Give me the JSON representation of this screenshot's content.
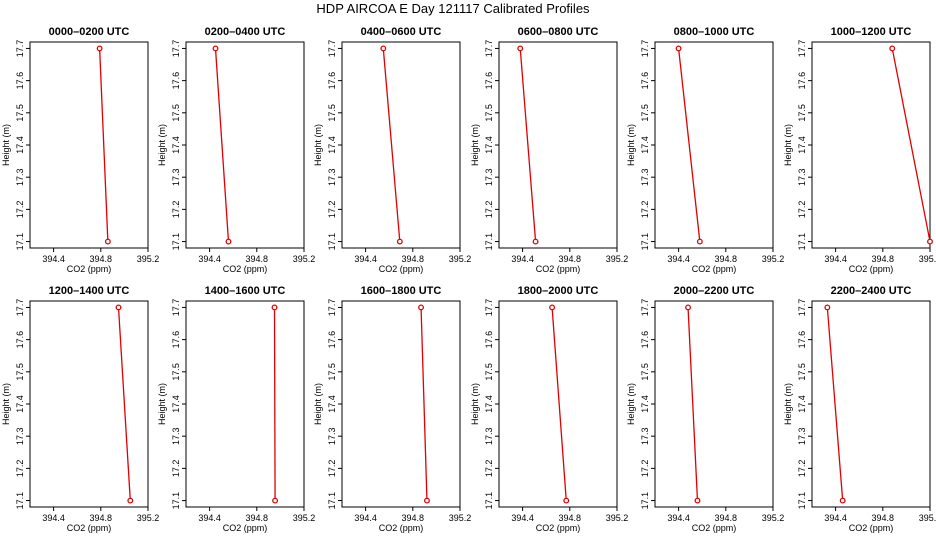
{
  "figure": {
    "title": "HDP AIRCOA E  Day 121117  Calibrated Profiles",
    "xlabel": "CO2 (ppm)",
    "ylabel": "Height (m)"
  },
  "chart_data": {
    "type": "line",
    "title": "HDP AIRCOA E  Day 121117  Calibrated Profiles",
    "xlabel": "CO2 (ppm)",
    "ylabel": "Height (m)",
    "xlim": [
      394.2,
      395.2
    ],
    "ylim": [
      17.08,
      17.72
    ],
    "xticks": [
      "394.4",
      "394.8",
      "395.2"
    ],
    "yticks": [
      "17.1",
      "17.2",
      "17.3",
      "17.4",
      "17.5",
      "17.6",
      "17.7"
    ],
    "series_color": "#e00000",
    "marker": "open-circle",
    "grid": false,
    "panels": [
      {
        "title": "0000–0200 UTC",
        "points": [
          {
            "x": 394.79,
            "y": 17.7
          },
          {
            "x": 394.86,
            "y": 17.1
          }
        ]
      },
      {
        "title": "0200–0400 UTC",
        "points": [
          {
            "x": 394.45,
            "y": 17.7
          },
          {
            "x": 394.56,
            "y": 17.1
          }
        ]
      },
      {
        "title": "0400–0600 UTC",
        "points": [
          {
            "x": 394.55,
            "y": 17.7
          },
          {
            "x": 394.69,
            "y": 17.1
          }
        ]
      },
      {
        "title": "0600–0800 UTC",
        "points": [
          {
            "x": 394.38,
            "y": 17.7
          },
          {
            "x": 394.51,
            "y": 17.1
          }
        ]
      },
      {
        "title": "0800–1000 UTC",
        "points": [
          {
            "x": 394.4,
            "y": 17.7
          },
          {
            "x": 394.58,
            "y": 17.1
          }
        ]
      },
      {
        "title": "1000–1200 UTC",
        "points": [
          {
            "x": 394.88,
            "y": 17.7
          },
          {
            "x": 395.2,
            "y": 17.1
          }
        ]
      },
      {
        "title": "1200–1400 UTC",
        "points": [
          {
            "x": 394.95,
            "y": 17.7
          },
          {
            "x": 395.05,
            "y": 17.1
          }
        ]
      },
      {
        "title": "1400–1600 UTC",
        "points": [
          {
            "x": 394.95,
            "y": 17.7
          },
          {
            "x": 394.955,
            "y": 17.1
          }
        ]
      },
      {
        "title": "1600–1800 UTC",
        "points": [
          {
            "x": 394.87,
            "y": 17.7
          },
          {
            "x": 394.92,
            "y": 17.1
          }
        ]
      },
      {
        "title": "1800–2000 UTC",
        "points": [
          {
            "x": 394.65,
            "y": 17.7
          },
          {
            "x": 394.77,
            "y": 17.1
          }
        ]
      },
      {
        "title": "2000–2200 UTC",
        "points": [
          {
            "x": 394.48,
            "y": 17.7
          },
          {
            "x": 394.56,
            "y": 17.1
          }
        ]
      },
      {
        "title": "2200–2400 UTC",
        "points": [
          {
            "x": 394.33,
            "y": 17.7
          },
          {
            "x": 394.46,
            "y": 17.1
          }
        ]
      }
    ]
  }
}
